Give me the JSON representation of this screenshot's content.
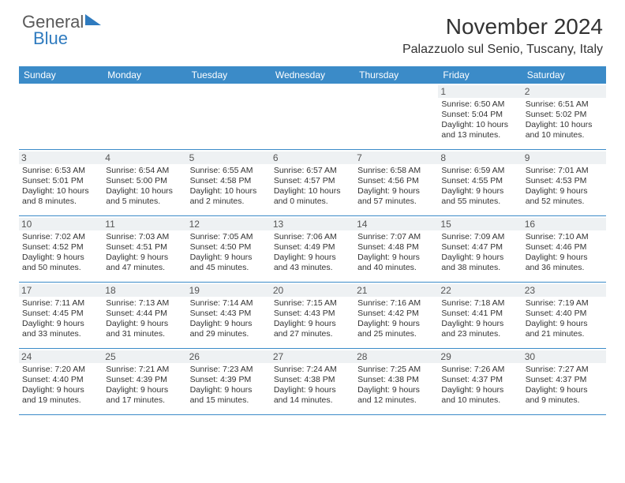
{
  "brand": {
    "general": "General",
    "blue": "Blue"
  },
  "title": "November 2024",
  "location": "Palazzuolo sul Senio, Tuscany, Italy",
  "colors": {
    "header_bg": "#3b8bc8",
    "header_text": "#ffffff",
    "daynum_bg": "#eef1f3",
    "cell_border": "#3b8bc8",
    "text": "#333333",
    "brand_blue": "#2f7bbf",
    "brand_gray": "#5a5a5a"
  },
  "typography": {
    "title_fontsize": 28,
    "location_fontsize": 16,
    "dayhead_fontsize": 12,
    "body_fontsize": 10.5
  },
  "day_names": [
    "Sunday",
    "Monday",
    "Tuesday",
    "Wednesday",
    "Thursday",
    "Friday",
    "Saturday"
  ],
  "weeks": [
    [
      {
        "num": "",
        "sunrise": "",
        "sunset": "",
        "daylight": ""
      },
      {
        "num": "",
        "sunrise": "",
        "sunset": "",
        "daylight": ""
      },
      {
        "num": "",
        "sunrise": "",
        "sunset": "",
        "daylight": ""
      },
      {
        "num": "",
        "sunrise": "",
        "sunset": "",
        "daylight": ""
      },
      {
        "num": "",
        "sunrise": "",
        "sunset": "",
        "daylight": ""
      },
      {
        "num": "1",
        "sunrise": "Sunrise: 6:50 AM",
        "sunset": "Sunset: 5:04 PM",
        "daylight": "Daylight: 10 hours and 13 minutes."
      },
      {
        "num": "2",
        "sunrise": "Sunrise: 6:51 AM",
        "sunset": "Sunset: 5:02 PM",
        "daylight": "Daylight: 10 hours and 10 minutes."
      }
    ],
    [
      {
        "num": "3",
        "sunrise": "Sunrise: 6:53 AM",
        "sunset": "Sunset: 5:01 PM",
        "daylight": "Daylight: 10 hours and 8 minutes."
      },
      {
        "num": "4",
        "sunrise": "Sunrise: 6:54 AM",
        "sunset": "Sunset: 5:00 PM",
        "daylight": "Daylight: 10 hours and 5 minutes."
      },
      {
        "num": "5",
        "sunrise": "Sunrise: 6:55 AM",
        "sunset": "Sunset: 4:58 PM",
        "daylight": "Daylight: 10 hours and 2 minutes."
      },
      {
        "num": "6",
        "sunrise": "Sunrise: 6:57 AM",
        "sunset": "Sunset: 4:57 PM",
        "daylight": "Daylight: 10 hours and 0 minutes."
      },
      {
        "num": "7",
        "sunrise": "Sunrise: 6:58 AM",
        "sunset": "Sunset: 4:56 PM",
        "daylight": "Daylight: 9 hours and 57 minutes."
      },
      {
        "num": "8",
        "sunrise": "Sunrise: 6:59 AM",
        "sunset": "Sunset: 4:55 PM",
        "daylight": "Daylight: 9 hours and 55 minutes."
      },
      {
        "num": "9",
        "sunrise": "Sunrise: 7:01 AM",
        "sunset": "Sunset: 4:53 PM",
        "daylight": "Daylight: 9 hours and 52 minutes."
      }
    ],
    [
      {
        "num": "10",
        "sunrise": "Sunrise: 7:02 AM",
        "sunset": "Sunset: 4:52 PM",
        "daylight": "Daylight: 9 hours and 50 minutes."
      },
      {
        "num": "11",
        "sunrise": "Sunrise: 7:03 AM",
        "sunset": "Sunset: 4:51 PM",
        "daylight": "Daylight: 9 hours and 47 minutes."
      },
      {
        "num": "12",
        "sunrise": "Sunrise: 7:05 AM",
        "sunset": "Sunset: 4:50 PM",
        "daylight": "Daylight: 9 hours and 45 minutes."
      },
      {
        "num": "13",
        "sunrise": "Sunrise: 7:06 AM",
        "sunset": "Sunset: 4:49 PM",
        "daylight": "Daylight: 9 hours and 43 minutes."
      },
      {
        "num": "14",
        "sunrise": "Sunrise: 7:07 AM",
        "sunset": "Sunset: 4:48 PM",
        "daylight": "Daylight: 9 hours and 40 minutes."
      },
      {
        "num": "15",
        "sunrise": "Sunrise: 7:09 AM",
        "sunset": "Sunset: 4:47 PM",
        "daylight": "Daylight: 9 hours and 38 minutes."
      },
      {
        "num": "16",
        "sunrise": "Sunrise: 7:10 AM",
        "sunset": "Sunset: 4:46 PM",
        "daylight": "Daylight: 9 hours and 36 minutes."
      }
    ],
    [
      {
        "num": "17",
        "sunrise": "Sunrise: 7:11 AM",
        "sunset": "Sunset: 4:45 PM",
        "daylight": "Daylight: 9 hours and 33 minutes."
      },
      {
        "num": "18",
        "sunrise": "Sunrise: 7:13 AM",
        "sunset": "Sunset: 4:44 PM",
        "daylight": "Daylight: 9 hours and 31 minutes."
      },
      {
        "num": "19",
        "sunrise": "Sunrise: 7:14 AM",
        "sunset": "Sunset: 4:43 PM",
        "daylight": "Daylight: 9 hours and 29 minutes."
      },
      {
        "num": "20",
        "sunrise": "Sunrise: 7:15 AM",
        "sunset": "Sunset: 4:43 PM",
        "daylight": "Daylight: 9 hours and 27 minutes."
      },
      {
        "num": "21",
        "sunrise": "Sunrise: 7:16 AM",
        "sunset": "Sunset: 4:42 PM",
        "daylight": "Daylight: 9 hours and 25 minutes."
      },
      {
        "num": "22",
        "sunrise": "Sunrise: 7:18 AM",
        "sunset": "Sunset: 4:41 PM",
        "daylight": "Daylight: 9 hours and 23 minutes."
      },
      {
        "num": "23",
        "sunrise": "Sunrise: 7:19 AM",
        "sunset": "Sunset: 4:40 PM",
        "daylight": "Daylight: 9 hours and 21 minutes."
      }
    ],
    [
      {
        "num": "24",
        "sunrise": "Sunrise: 7:20 AM",
        "sunset": "Sunset: 4:40 PM",
        "daylight": "Daylight: 9 hours and 19 minutes."
      },
      {
        "num": "25",
        "sunrise": "Sunrise: 7:21 AM",
        "sunset": "Sunset: 4:39 PM",
        "daylight": "Daylight: 9 hours and 17 minutes."
      },
      {
        "num": "26",
        "sunrise": "Sunrise: 7:23 AM",
        "sunset": "Sunset: 4:39 PM",
        "daylight": "Daylight: 9 hours and 15 minutes."
      },
      {
        "num": "27",
        "sunrise": "Sunrise: 7:24 AM",
        "sunset": "Sunset: 4:38 PM",
        "daylight": "Daylight: 9 hours and 14 minutes."
      },
      {
        "num": "28",
        "sunrise": "Sunrise: 7:25 AM",
        "sunset": "Sunset: 4:38 PM",
        "daylight": "Daylight: 9 hours and 12 minutes."
      },
      {
        "num": "29",
        "sunrise": "Sunrise: 7:26 AM",
        "sunset": "Sunset: 4:37 PM",
        "daylight": "Daylight: 9 hours and 10 minutes."
      },
      {
        "num": "30",
        "sunrise": "Sunrise: 7:27 AM",
        "sunset": "Sunset: 4:37 PM",
        "daylight": "Daylight: 9 hours and 9 minutes."
      }
    ]
  ]
}
